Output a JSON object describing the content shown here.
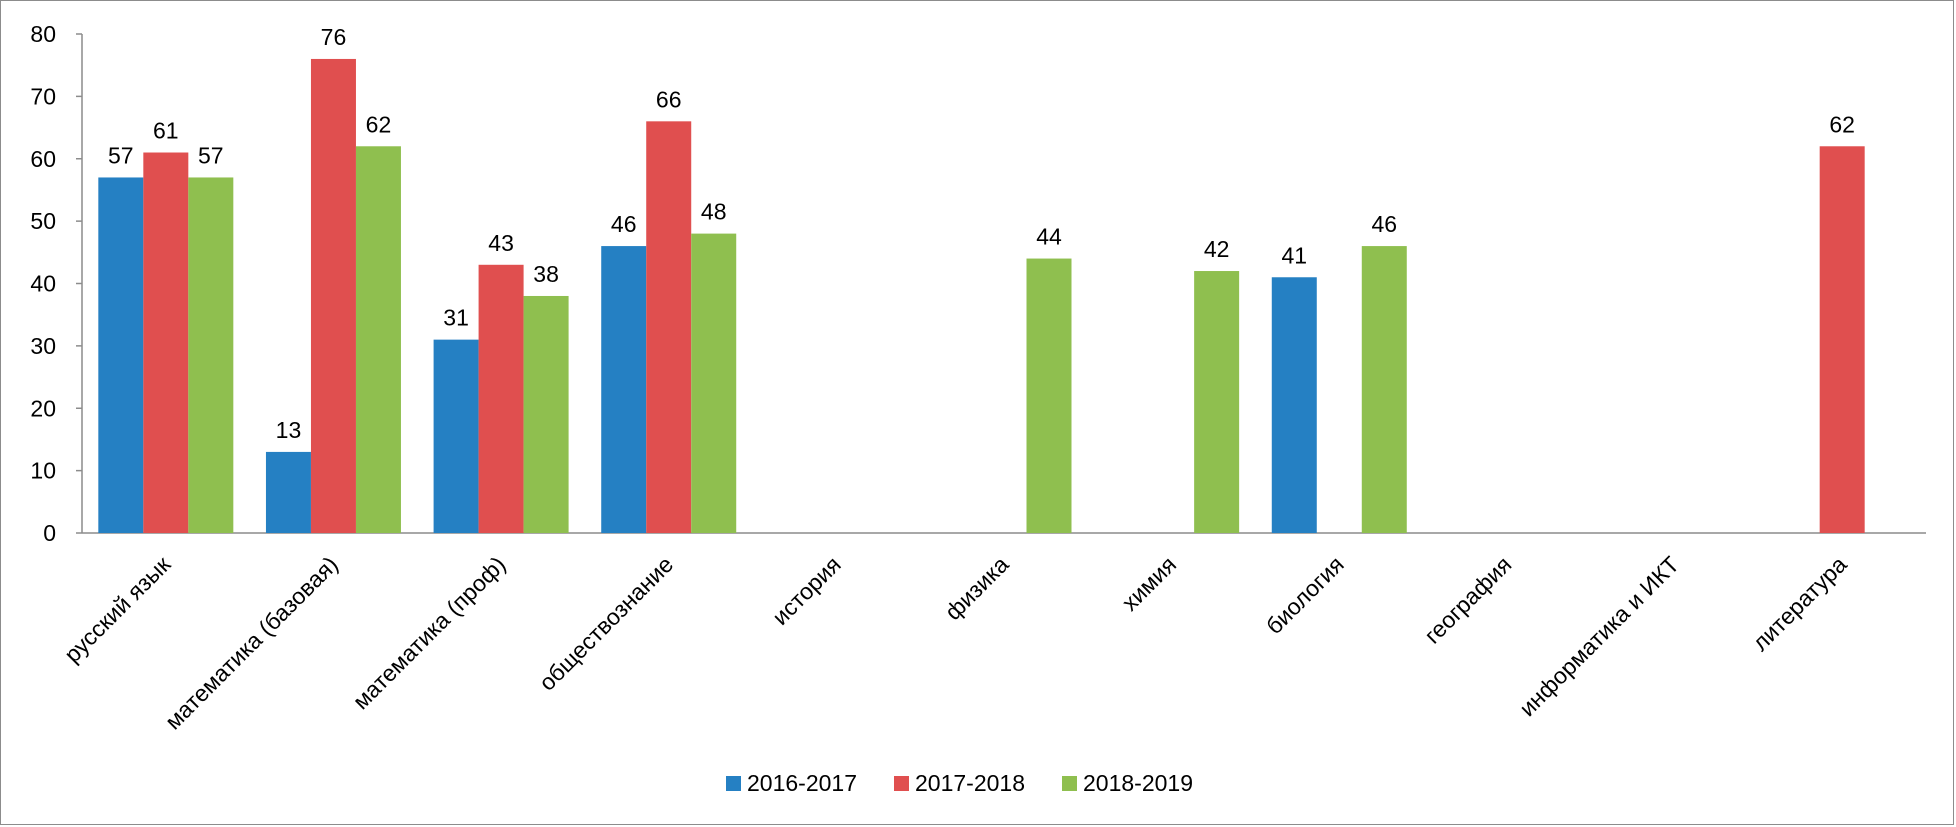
{
  "chart_data": {
    "type": "bar",
    "categories": [
      "русский язык",
      "математика (базовая)",
      "математика (проф)",
      "обществознание",
      "история",
      "физика",
      "химия",
      "биология",
      "география",
      "информатика и ИКТ",
      "литература"
    ],
    "series": [
      {
        "name": "2016-2017",
        "color": "#2580c3",
        "values": [
          57,
          13,
          31,
          46,
          null,
          null,
          null,
          41,
          null,
          null,
          null
        ]
      },
      {
        "name": "2017-2018",
        "color": "#e04f4f",
        "values": [
          61,
          76,
          43,
          66,
          null,
          null,
          null,
          null,
          null,
          null,
          62
        ]
      },
      {
        "name": "2018-2019",
        "color": "#8fbf4f",
        "values": [
          57,
          62,
          38,
          48,
          null,
          44,
          42,
          46,
          null,
          null,
          null
        ]
      }
    ],
    "ylim": [
      0,
      80
    ],
    "yticks": [
      0,
      10,
      20,
      30,
      40,
      50,
      60,
      70,
      80
    ],
    "grid": false,
    "legend_position": "bottom"
  }
}
